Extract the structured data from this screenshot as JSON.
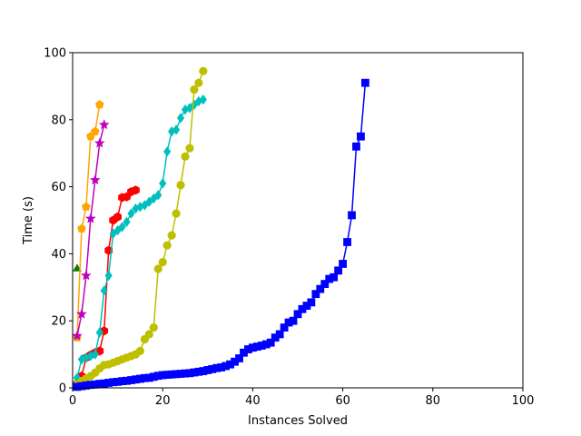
{
  "chart_data": {
    "type": "line",
    "title": "",
    "xlabel": "Instances Solved",
    "ylabel": "Time (s)",
    "xlim": [
      0,
      100
    ],
    "ylim": [
      0,
      100
    ],
    "xticks": [
      0,
      20,
      40,
      60,
      80,
      100
    ],
    "yticks": [
      0,
      20,
      40,
      60,
      80,
      100
    ],
    "grid": false,
    "legend": "none",
    "series": [
      {
        "color": "#008000",
        "marker": "triangle",
        "x": [
          1
        ],
        "y": [
          35.5
        ]
      },
      {
        "color": "#ff0000",
        "marker": "hexagon",
        "x": [
          1,
          2,
          3,
          4,
          5,
          6,
          7,
          8,
          9,
          10,
          11,
          12,
          13,
          14
        ],
        "y": [
          1.2,
          3.5,
          9.0,
          9.8,
          10.5,
          11.0,
          17.0,
          41.0,
          50.0,
          51.0,
          56.8,
          57.0,
          58.5,
          59.0
        ]
      },
      {
        "color": "#ffa500",
        "marker": "pentagon",
        "x": [
          1,
          2,
          3,
          4,
          5,
          6
        ],
        "y": [
          15.0,
          47.5,
          54.0,
          75.0,
          76.5,
          84.5
        ]
      },
      {
        "color": "#bf00bf",
        "marker": "star",
        "x": [
          1,
          2,
          3,
          4,
          5,
          6,
          7
        ],
        "y": [
          15.5,
          22.0,
          33.5,
          50.5,
          62.0,
          73.0,
          78.5
        ]
      },
      {
        "color": "#00bfbf",
        "marker": "diamond",
        "x": [
          1,
          2,
          3,
          4,
          5,
          6,
          7,
          8,
          9,
          10,
          11,
          12,
          13,
          14,
          15,
          16,
          17,
          18,
          19,
          20,
          21,
          22,
          23,
          24,
          25,
          26,
          27,
          28,
          29
        ],
        "y": [
          3.0,
          8.5,
          9.0,
          9.5,
          10.0,
          16.5,
          29.0,
          33.5,
          46.0,
          47.0,
          48.0,
          49.5,
          52.0,
          53.5,
          54.0,
          54.5,
          55.5,
          56.5,
          57.5,
          61.0,
          70.5,
          76.5,
          77.0,
          80.5,
          83.0,
          83.5,
          84.5,
          85.5,
          86.0
        ]
      },
      {
        "color": "#bfbf00",
        "marker": "circle",
        "x": [
          1,
          2,
          3,
          4,
          5,
          6,
          7,
          8,
          9,
          10,
          11,
          12,
          13,
          14,
          15,
          16,
          17,
          18,
          19,
          20,
          21,
          22,
          23,
          24,
          25,
          26,
          27,
          28,
          29
        ],
        "y": [
          1.0,
          2.0,
          2.8,
          3.5,
          4.5,
          5.8,
          6.8,
          7.0,
          7.5,
          8.0,
          8.5,
          9.0,
          9.5,
          10.0,
          11.0,
          14.5,
          16.0,
          18.0,
          35.5,
          37.5,
          42.5,
          45.5,
          52.0,
          60.5,
          69.0,
          71.5,
          89.0,
          91.0,
          94.5
        ]
      },
      {
        "color": "#0000ff",
        "marker": "square",
        "x": [
          1,
          2,
          3,
          4,
          5,
          6,
          7,
          8,
          9,
          10,
          11,
          12,
          13,
          14,
          15,
          16,
          17,
          18,
          19,
          20,
          21,
          22,
          23,
          24,
          25,
          26,
          27,
          28,
          29,
          30,
          31,
          32,
          33,
          34,
          35,
          36,
          37,
          38,
          39,
          40,
          41,
          42,
          43,
          44,
          45,
          46,
          47,
          48,
          49,
          50,
          51,
          52,
          53,
          54,
          55,
          56,
          57,
          58,
          59,
          60,
          61,
          62,
          63,
          64,
          65
        ],
        "y": [
          0.3,
          0.5,
          0.7,
          0.9,
          1.0,
          1.2,
          1.3,
          1.5,
          1.7,
          1.8,
          2.0,
          2.1,
          2.3,
          2.5,
          2.7,
          2.9,
          3.0,
          3.3,
          3.6,
          3.8,
          3.9,
          4.0,
          4.1,
          4.2,
          4.3,
          4.4,
          4.6,
          4.8,
          5.0,
          5.3,
          5.6,
          5.9,
          6.1,
          6.5,
          7.0,
          7.8,
          8.8,
          10.5,
          11.5,
          12.0,
          12.3,
          12.6,
          13.0,
          13.5,
          15.0,
          16.0,
          18.0,
          19.5,
          20.0,
          22.0,
          23.5,
          24.5,
          25.5,
          28.0,
          29.5,
          31.0,
          32.5,
          33.0,
          35.0,
          37.0,
          43.5,
          51.5,
          72.0,
          75.0,
          91.0
        ]
      }
    ]
  }
}
